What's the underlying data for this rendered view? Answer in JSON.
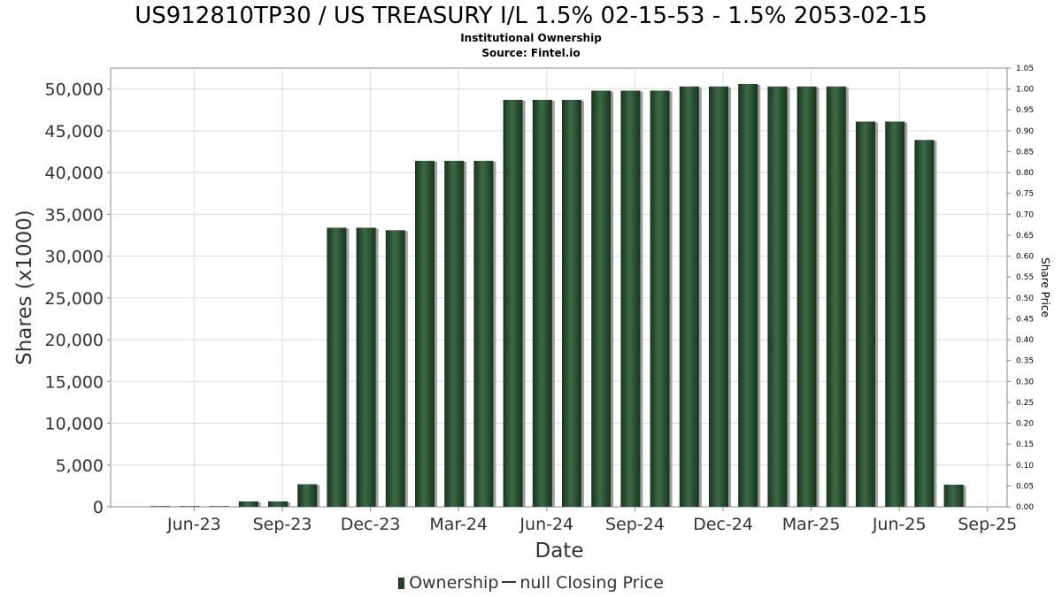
{
  "header": {
    "title": "US912810TP30 / US TREASURY I/L 1.5% 02-15-53 - 1.5% 2053-02-15",
    "subtitle": "Institutional Ownership",
    "source": "Source: Fintel.io"
  },
  "legend": {
    "ownership_label": "Ownership",
    "price_label": "null Closing Price"
  },
  "colors": {
    "bar": "#1e4425",
    "bar_highlight": "#3d6a45",
    "bar_shadow": "#8a8a8a",
    "grid": "#dddddd",
    "frame": "#888888"
  },
  "chart_data": {
    "type": "bar",
    "title": "US912810TP30 / US TREASURY I/L 1.5% 02-15-53 - 1.5% 2053-02-15",
    "subtitle": "Institutional Ownership",
    "xlabel": "Date",
    "ylabel": "Shares (x1000)",
    "y2label": "Share Price",
    "ylim": [
      0,
      52500
    ],
    "y2lim": [
      0,
      1.05
    ],
    "y_ticks": [
      "0",
      "5,000",
      "10,000",
      "15,000",
      "20,000",
      "25,000",
      "30,000",
      "35,000",
      "40,000",
      "45,000",
      "50,000"
    ],
    "y_tick_values": [
      0,
      5000,
      10000,
      15000,
      20000,
      25000,
      30000,
      35000,
      40000,
      45000,
      50000
    ],
    "y2_ticks": [
      "0.00",
      "0.05",
      "0.10",
      "0.15",
      "0.20",
      "0.25",
      "0.30",
      "0.35",
      "0.40",
      "0.45",
      "0.50",
      "0.55",
      "0.60",
      "0.65",
      "0.70",
      "0.75",
      "0.80",
      "0.85",
      "0.90",
      "0.95",
      "1.00",
      "1.05"
    ],
    "y2_tick_values": [
      0,
      0.05,
      0.1,
      0.15,
      0.2,
      0.25,
      0.3,
      0.35,
      0.4,
      0.45,
      0.5,
      0.55,
      0.6,
      0.65,
      0.7,
      0.75,
      0.8,
      0.85,
      0.9,
      0.95,
      1.0,
      1.05
    ],
    "x_ticks": [
      "Jun-23",
      "Sep-23",
      "Dec-23",
      "Mar-24",
      "Jun-24",
      "Sep-24",
      "Dec-24",
      "Mar-25",
      "Jun-25",
      "Sep-25"
    ],
    "x_tick_months": [
      2,
      5,
      8,
      11,
      14,
      17,
      20,
      23,
      26,
      29
    ],
    "x_start": "2023-04",
    "grid": true,
    "legend_position": "bottom-center",
    "series": [
      {
        "name": "Ownership",
        "type": "bar",
        "points": [
          {
            "month": "2023-05",
            "value": 80
          },
          {
            "month": "2023-06",
            "value": 80
          },
          {
            "month": "2023-07",
            "value": 80
          },
          {
            "month": "2023-08",
            "value": 650
          },
          {
            "month": "2023-09",
            "value": 650
          },
          {
            "month": "2023-10",
            "value": 2700
          },
          {
            "month": "2023-11",
            "value": 33400
          },
          {
            "month": "2023-12",
            "value": 33400
          },
          {
            "month": "2024-01",
            "value": 33100
          },
          {
            "month": "2024-02",
            "value": 41400
          },
          {
            "month": "2024-03",
            "value": 41400
          },
          {
            "month": "2024-04",
            "value": 41400
          },
          {
            "month": "2024-05",
            "value": 48700
          },
          {
            "month": "2024-06",
            "value": 48700
          },
          {
            "month": "2024-07",
            "value": 48700
          },
          {
            "month": "2024-08",
            "value": 49800
          },
          {
            "month": "2024-09",
            "value": 49800
          },
          {
            "month": "2024-10",
            "value": 49800
          },
          {
            "month": "2024-11",
            "value": 50300
          },
          {
            "month": "2024-12",
            "value": 50300
          },
          {
            "month": "2025-01",
            "value": 50600
          },
          {
            "month": "2025-02",
            "value": 50300
          },
          {
            "month": "2025-03",
            "value": 50300
          },
          {
            "month": "2025-04",
            "value": 50300
          },
          {
            "month": "2025-05",
            "value": 46100
          },
          {
            "month": "2025-06",
            "value": 46100
          },
          {
            "month": "2025-07",
            "value": 43900
          },
          {
            "month": "2025-08",
            "value": 2650
          }
        ]
      }
    ]
  }
}
